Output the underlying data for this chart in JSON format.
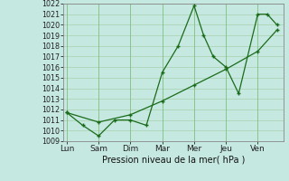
{
  "line1_x": [
    0,
    0.5,
    1,
    1.5,
    2,
    2.5,
    3,
    3.5,
    4,
    4.3,
    4.6,
    5,
    5.4,
    6,
    6.3,
    6.6
  ],
  "line1_y": [
    1011.7,
    1010.5,
    1009.5,
    1011.0,
    1011.0,
    1010.5,
    1015.5,
    1018.0,
    1021.8,
    1019.0,
    1017.0,
    1016.0,
    1013.5,
    1021.0,
    1021.0,
    1020.0
  ],
  "line2_x": [
    0,
    1,
    2,
    3,
    4,
    5,
    6,
    6.6
  ],
  "line2_y": [
    1011.7,
    1010.8,
    1011.5,
    1012.8,
    1014.3,
    1015.8,
    1017.5,
    1019.5
  ],
  "xtick_positions": [
    0,
    1,
    2,
    3,
    4,
    5,
    6
  ],
  "xtick_labels": [
    "Lun",
    "Sam",
    "Dim",
    "Mar",
    "Mer",
    "Jeu",
    "Ven"
  ],
  "xlabel": "Pression niveau de la mer( hPa )",
  "ymin": 1009,
  "ymax": 1022,
  "line_color": "#1a6b1a",
  "bg_color": "#c5e8e0",
  "grid_color": "#7abf7a",
  "grid_color2": "#a0c8a0"
}
